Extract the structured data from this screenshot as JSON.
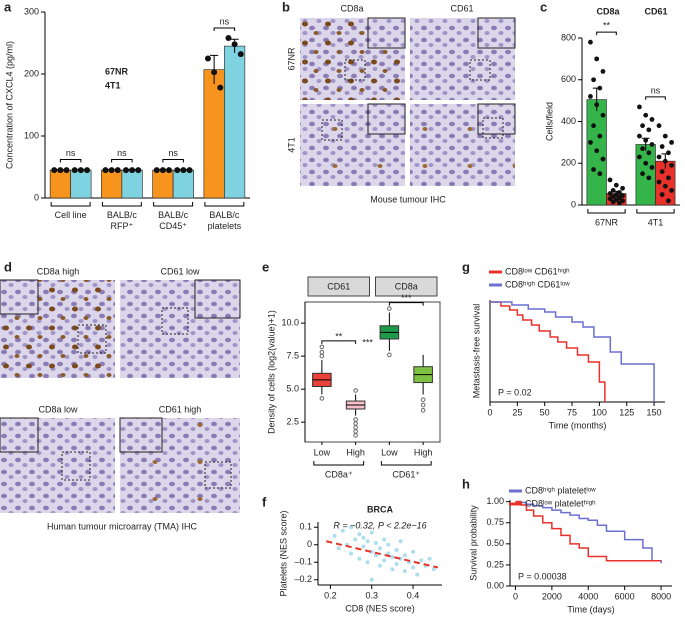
{
  "figure": {
    "panel_letters": [
      "a",
      "b",
      "c",
      "d",
      "e",
      "f",
      "g",
      "h"
    ],
    "b": {
      "columns": [
        "CD8a",
        "CD61"
      ],
      "rows": [
        "67NR",
        "4T1"
      ],
      "caption": "Mouse tumour IHC"
    },
    "d": {
      "labels": [
        "CD8a high",
        "CD61 low",
        "CD8a low",
        "CD61 high"
      ],
      "caption": "Human tumour microarray (TMA) IHC"
    }
  },
  "chart_data": [
    {
      "type": "bar",
      "ylabel": "Concentration of CXCL4 (pg/ml)",
      "categories": [
        [
          "Cell line"
        ],
        [
          "BALB/c",
          "RFP⁺"
        ],
        [
          "BALB/c",
          "CD45⁺"
        ],
        [
          "BALB/c",
          "platelets"
        ]
      ],
      "series": [
        {
          "name": "67NR",
          "color": "#f7941d",
          "values": [
            45,
            45,
            45,
            207
          ],
          "errors": [
            1,
            1,
            1,
            23
          ],
          "points": [
            [
              45,
              45,
              45
            ],
            [
              45,
              45,
              45
            ],
            [
              45,
              45,
              45
            ],
            [
              225,
              203,
              178
            ]
          ]
        },
        {
          "name": "4T1",
          "color": "#7fd3e0",
          "values": [
            45,
            45,
            45,
            245
          ],
          "errors": [
            1,
            1,
            1,
            11
          ],
          "points": [
            [
              45,
              45,
              45
            ],
            [
              45,
              45,
              45
            ],
            [
              45,
              45,
              45
            ],
            [
              258,
              248,
              232
            ]
          ]
        }
      ],
      "ylim": [
        0,
        300
      ],
      "yticks": [
        0,
        100,
        200,
        300
      ],
      "significance": [
        "ns",
        "ns",
        "ns",
        "ns"
      ]
    },
    {
      "type": "bar",
      "ylabel": "Cells/field",
      "categories": [
        "67NR",
        "4T1"
      ],
      "series": [
        {
          "name": "CD8a",
          "color": "#35b44a",
          "values": [
            505,
            290
          ],
          "errors": [
            55,
            30
          ],
          "points": [
            [
              780,
              700,
              640,
              600,
              560,
              520,
              480,
              430,
              380,
              330,
              300,
              260,
              220,
              170,
              150
            ],
            [
              470,
              430,
              410,
              380,
              360,
              330,
              310,
              290,
              270,
              250,
              230,
              200,
              180,
              150,
              130
            ]
          ]
        },
        {
          "name": "CD61",
          "color": "#e8312a",
          "values": [
            55,
            210
          ],
          "errors": [
            10,
            35
          ],
          "points": [
            [
              120,
              95,
              80,
              70,
              60,
              55,
              50,
              45,
              40,
              35,
              30,
              25,
              20,
              15,
              10
            ],
            [
              380,
              330,
              300,
              280,
              250,
              230,
              210,
              190,
              160,
              130,
              110,
              90,
              70,
              50,
              20
            ]
          ]
        }
      ],
      "ylim": [
        0,
        800
      ],
      "yticks": [
        0,
        200,
        400,
        600,
        800
      ],
      "significance": [
        "**",
        "ns"
      ]
    },
    {
      "type": "box",
      "ylabel": "Density of cells (log2(value)+1)",
      "facets": [
        {
          "name": "CD61",
          "significance": [
            "**",
            "***"
          ]
        },
        {
          "name": "CD8a",
          "significance": [
            "***"
          ]
        }
      ],
      "categories": [
        "Low",
        "High",
        "Low",
        "High"
      ],
      "groups": [
        "CD8a⁺",
        "CD61⁺"
      ],
      "boxes": [
        {
          "color": "#e8413a",
          "q1": 5.2,
          "median": 5.7,
          "q3": 6.2,
          "whisker_low": 4.6,
          "whisker_high": 7.2,
          "outliers": [
            7.5,
            7.8,
            8.2,
            4.3
          ]
        },
        {
          "color": "#f6bfc9",
          "q1": 3.5,
          "median": 3.8,
          "q3": 4.1,
          "whisker_low": 3.0,
          "whisker_high": 4.6,
          "outliers": [
            4.9,
            2.7,
            2.4,
            2.1,
            1.8,
            1.5
          ]
        },
        {
          "color": "#1f9a4a",
          "q1": 8.8,
          "median": 9.3,
          "q3": 9.8,
          "whisker_low": 7.9,
          "whisker_high": 10.8,
          "outliers": [
            11.1,
            7.6
          ]
        },
        {
          "color": "#7dc242",
          "q1": 5.5,
          "median": 6.1,
          "q3": 6.7,
          "whisker_low": 4.6,
          "whisker_high": 7.6,
          "outliers": [
            4.2,
            3.8,
            3.4
          ]
        }
      ],
      "ylim": [
        1,
        11.6
      ],
      "yticks": [
        2.5,
        {
          "value": 5,
          "label": "5.0"
        },
        7.5,
        {
          "value": 10,
          "label": "10.0"
        }
      ]
    },
    {
      "type": "scatter",
      "title": "BRCA",
      "annotation": "R = −0.32, P < 2.2e−16",
      "xlabel": "CD8 (NES score)",
      "ylabel": "Platelets (NES score)",
      "color": "#9fd8e8",
      "x": [
        0.21,
        0.22,
        0.23,
        0.24,
        0.25,
        0.25,
        0.26,
        0.27,
        0.27,
        0.28,
        0.28,
        0.29,
        0.29,
        0.3,
        0.3,
        0.31,
        0.31,
        0.32,
        0.32,
        0.33,
        0.33,
        0.34,
        0.34,
        0.35,
        0.35,
        0.36,
        0.36,
        0.37,
        0.37,
        0.38,
        0.38,
        0.39,
        0.4,
        0.4,
        0.41,
        0.42,
        0.43,
        0.44,
        0.45,
        0.3
      ],
      "y": [
        0.05,
        -0.02,
        0.08,
        0.0,
        -0.05,
        0.1,
        0.03,
        -0.08,
        0.06,
        -0.01,
        0.04,
        -0.1,
        0.02,
        -0.04,
        0.07,
        -0.06,
        0.01,
        -0.12,
        -0.02,
        0.03,
        -0.09,
        -0.05,
        0.0,
        -0.14,
        -0.07,
        -0.03,
        -0.11,
        -0.08,
        0.02,
        -0.15,
        -0.06,
        -0.1,
        -0.04,
        -0.13,
        -0.17,
        -0.09,
        -0.12,
        -0.08,
        -0.14,
        -0.2
      ],
      "fit": {
        "x": [
          0.19,
          0.46
        ],
        "y": [
          0.02,
          -0.13
        ],
        "color": "#e8312a"
      },
      "xlim": [
        0.17,
        0.47
      ],
      "xticks": [
        0.2,
        0.3,
        0.4
      ],
      "ylim": [
        -0.23,
        0.13
      ],
      "yticks": [
        0.1,
        0,
        {
          "value": -0.1,
          "label": "–0.1"
        },
        {
          "value": -0.2,
          "label": "–0.2"
        }
      ]
    },
    {
      "type": "line",
      "step": true,
      "xlabel": "Time (months)",
      "ylabel": "Metastasis-free survival",
      "annotation": "P = 0.02",
      "xlim": [
        0,
        160
      ],
      "xticks": [
        0,
        25,
        50,
        75,
        100,
        125,
        150
      ],
      "ylim": [
        0,
        1.02
      ],
      "series": [
        {
          "name": "CD8ˡᵒʷ CD61ʰⁱᵍʰ",
          "color": "#e8312a",
          "x": [
            0,
            10,
            18,
            25,
            30,
            38,
            45,
            55,
            62,
            70,
            80,
            90,
            100,
            105
          ],
          "y": [
            1,
            0.96,
            0.92,
            0.87,
            0.82,
            0.77,
            0.71,
            0.65,
            0.6,
            0.54,
            0.47,
            0.4,
            0.2,
            0
          ]
        },
        {
          "name": "CD8ʰⁱᵍʰ CD61ˡᵒʷ",
          "color": "#6a6fd0",
          "x": [
            0,
            20,
            35,
            50,
            60,
            75,
            85,
            95,
            110,
            120,
            150
          ],
          "y": [
            1,
            0.97,
            0.93,
            0.9,
            0.85,
            0.8,
            0.75,
            0.65,
            0.5,
            0.38,
            0
          ]
        }
      ]
    },
    {
      "type": "line",
      "step": true,
      "xlabel": "Time (days)",
      "ylabel": "Survival probability",
      "annotation": "P = 0.00038",
      "xlim": [
        -300,
        8600
      ],
      "xticks": [
        0,
        2000,
        4000,
        6000,
        8000
      ],
      "ylim": [
        0,
        1.02
      ],
      "yticks": [
        {
          "value": 0,
          "label": "0.00"
        },
        0.25,
        {
          "value": 0.5,
          "label": "0.50"
        },
        0.75,
        {
          "value": 1,
          "label": "1.00"
        }
      ],
      "series": [
        {
          "name": "CD8ʰⁱᵍʰ plateletˡᵒʷ",
          "color": "#6a6fd0",
          "x": [
            0,
            300,
            600,
            1000,
            1500,
            2000,
            2500,
            3000,
            3500,
            4000,
            4500,
            5000,
            6000,
            7000,
            7500,
            8000
          ],
          "y": [
            1,
            0.99,
            0.97,
            0.95,
            0.93,
            0.9,
            0.87,
            0.84,
            0.8,
            0.78,
            0.72,
            0.65,
            0.55,
            0.45,
            0.3,
            0.27
          ]
        },
        {
          "name": "CD8ˡᵒʷ plateletʰⁱᵍʰ",
          "color": "#e8312a",
          "x": [
            0,
            300,
            600,
            1000,
            1500,
            2000,
            2500,
            3000,
            3500,
            4000,
            5000,
            8000
          ],
          "y": [
            1,
            0.96,
            0.9,
            0.83,
            0.75,
            0.68,
            0.6,
            0.5,
            0.45,
            0.35,
            0.3,
            0.3
          ]
        }
      ]
    }
  ]
}
